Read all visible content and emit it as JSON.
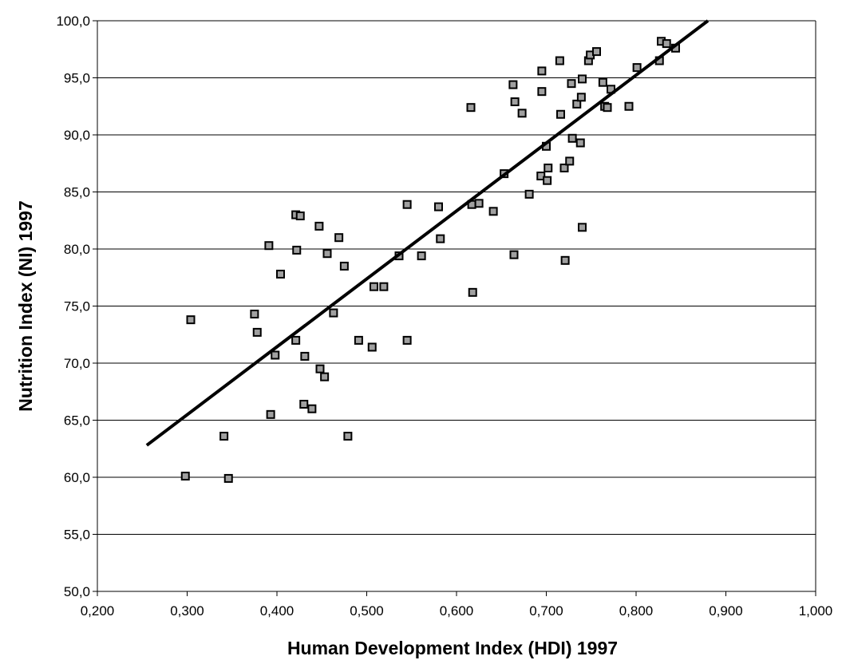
{
  "chart_data": {
    "type": "scatter",
    "title": "",
    "xlabel": "Human Development Index (HDI) 1997",
    "ylabel": "Nutrition Index (NI) 1997",
    "xlim": [
      0.2,
      1.0
    ],
    "ylim": [
      50,
      100
    ],
    "xticks": [
      0.2,
      0.3,
      0.4,
      0.5,
      0.6,
      0.7,
      0.8,
      0.9,
      1.0
    ],
    "xtick_labels": [
      "0,200",
      "0,300",
      "0,400",
      "0,500",
      "0,600",
      "0,700",
      "0,800",
      "0,900",
      "1,000"
    ],
    "yticks": [
      50,
      55,
      60,
      65,
      70,
      75,
      80,
      85,
      90,
      95,
      100
    ],
    "ytick_labels": [
      "50,0",
      "55,0",
      "60,0",
      "65,0",
      "70,0",
      "75,0",
      "80,0",
      "85,0",
      "90,0",
      "95,0",
      "100,0"
    ],
    "grid": "horizontal",
    "marker_color": "#a0a0a0",
    "marker_edge": "#000000",
    "trend_line": {
      "x": [
        0.255,
        0.88
      ],
      "y": [
        62.8,
        100.0
      ],
      "color": "#000000"
    },
    "points": [
      [
        0.298,
        60.1
      ],
      [
        0.304,
        73.8
      ],
      [
        0.341,
        63.6
      ],
      [
        0.346,
        59.9
      ],
      [
        0.375,
        74.3
      ],
      [
        0.378,
        72.7
      ],
      [
        0.391,
        80.3
      ],
      [
        0.393,
        65.5
      ],
      [
        0.398,
        70.7
      ],
      [
        0.404,
        77.8
      ],
      [
        0.421,
        72.0
      ],
      [
        0.421,
        83.0
      ],
      [
        0.422,
        79.9
      ],
      [
        0.426,
        82.9
      ],
      [
        0.43,
        66.4
      ],
      [
        0.431,
        70.6
      ],
      [
        0.439,
        66.0
      ],
      [
        0.447,
        82.0
      ],
      [
        0.448,
        69.5
      ],
      [
        0.453,
        68.8
      ],
      [
        0.456,
        79.6
      ],
      [
        0.463,
        74.4
      ],
      [
        0.469,
        81.0
      ],
      [
        0.475,
        78.5
      ],
      [
        0.479,
        63.6
      ],
      [
        0.491,
        72.0
      ],
      [
        0.506,
        71.4
      ],
      [
        0.508,
        76.7
      ],
      [
        0.519,
        76.7
      ],
      [
        0.536,
        79.4
      ],
      [
        0.545,
        83.9
      ],
      [
        0.545,
        72.0
      ],
      [
        0.561,
        79.4
      ],
      [
        0.58,
        83.7
      ],
      [
        0.582,
        80.9
      ],
      [
        0.616,
        92.4
      ],
      [
        0.617,
        83.9
      ],
      [
        0.618,
        76.2
      ],
      [
        0.625,
        84.0
      ],
      [
        0.641,
        83.3
      ],
      [
        0.653,
        86.6
      ],
      [
        0.663,
        94.4
      ],
      [
        0.664,
        79.5
      ],
      [
        0.665,
        92.9
      ],
      [
        0.673,
        91.9
      ],
      [
        0.681,
        84.8
      ],
      [
        0.694,
        86.4
      ],
      [
        0.695,
        95.6
      ],
      [
        0.695,
        93.8
      ],
      [
        0.7,
        89.0
      ],
      [
        0.701,
        86.0
      ],
      [
        0.702,
        87.1
      ],
      [
        0.715,
        96.5
      ],
      [
        0.716,
        91.8
      ],
      [
        0.72,
        87.1
      ],
      [
        0.721,
        79.0
      ],
      [
        0.726,
        87.7
      ],
      [
        0.728,
        94.5
      ],
      [
        0.729,
        89.7
      ],
      [
        0.734,
        92.7
      ],
      [
        0.738,
        89.3
      ],
      [
        0.739,
        93.3
      ],
      [
        0.74,
        94.9
      ],
      [
        0.74,
        81.9
      ],
      [
        0.747,
        96.5
      ],
      [
        0.749,
        97.0
      ],
      [
        0.756,
        97.3
      ],
      [
        0.763,
        94.6
      ],
      [
        0.765,
        92.5
      ],
      [
        0.768,
        92.4
      ],
      [
        0.772,
        94.0
      ],
      [
        0.792,
        92.5
      ],
      [
        0.801,
        95.9
      ],
      [
        0.826,
        96.5
      ],
      [
        0.828,
        98.2
      ],
      [
        0.834,
        98.0
      ],
      [
        0.844,
        97.6
      ]
    ]
  }
}
